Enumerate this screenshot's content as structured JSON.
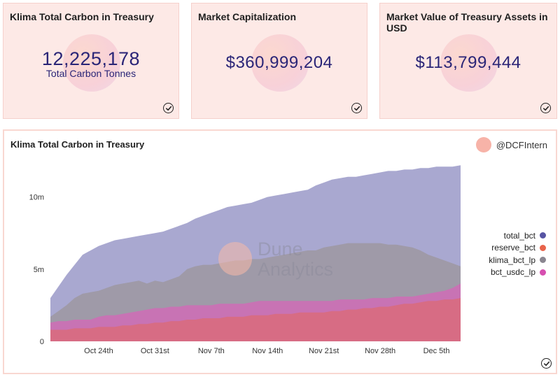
{
  "cards": [
    {
      "title": "Klima Total Carbon in Treasury",
      "value": "12,225,178",
      "subtitle": "Total Carbon Tonnes"
    },
    {
      "title": "Market Capitalization",
      "value": "$360,999,204"
    },
    {
      "title": "Market Value of Treasury Assets in USD",
      "value": "$113,799,444"
    }
  ],
  "chart_card": {
    "title": "Klima Total Carbon in Treasury",
    "attribution": "@DCFIntern",
    "watermark": {
      "line1": "Dune",
      "line2": "Analytics"
    }
  },
  "colors": {
    "card_bg": "#fde9e6",
    "value_text": "#2a2577",
    "total_bct": "#a9a8d0",
    "reserve_bct": "#e8634a",
    "klima_bct_lp": "#9f9aa8",
    "bct_usdc_lp": "#c873b4"
  },
  "chart_data": {
    "type": "area",
    "title": "Klima Total Carbon in Treasury",
    "x_ticks": [
      "Oct 24th",
      "Oct 31st",
      "Nov 7th",
      "Nov 14th",
      "Nov 21st",
      "Nov 28th",
      "Dec 5th"
    ],
    "y_ticks": [
      "0",
      "5m",
      "10m"
    ],
    "ylim": [
      0,
      12500000
    ],
    "x": [
      "Oct 18",
      "Oct 19",
      "Oct 20",
      "Oct 21",
      "Oct 22",
      "Oct 23",
      "Oct 24",
      "Oct 25",
      "Oct 26",
      "Oct 27",
      "Oct 28",
      "Oct 29",
      "Oct 30",
      "Oct 31",
      "Nov 1",
      "Nov 2",
      "Nov 3",
      "Nov 4",
      "Nov 5",
      "Nov 6",
      "Nov 7",
      "Nov 8",
      "Nov 9",
      "Nov 10",
      "Nov 11",
      "Nov 12",
      "Nov 13",
      "Nov 14",
      "Nov 15",
      "Nov 16",
      "Nov 17",
      "Nov 18",
      "Nov 19",
      "Nov 20",
      "Nov 21",
      "Nov 22",
      "Nov 23",
      "Nov 24",
      "Nov 25",
      "Nov 26",
      "Nov 27",
      "Nov 28",
      "Nov 29",
      "Nov 30",
      "Dec 1",
      "Dec 2",
      "Dec 3",
      "Dec 4",
      "Dec 5",
      "Dec 6",
      "Dec 7",
      "Dec 8"
    ],
    "legend": [
      "total_bct",
      "reserve_bct",
      "klima_bct_lp",
      "bct_usdc_lp"
    ],
    "series": [
      {
        "name": "bct_usdc_lp",
        "values": [
          1.3,
          1.4,
          1.4,
          1.5,
          1.5,
          1.5,
          1.7,
          1.8,
          1.8,
          1.9,
          2.0,
          2.1,
          2.2,
          2.3,
          2.3,
          2.4,
          2.4,
          2.5,
          2.5,
          2.5,
          2.5,
          2.6,
          2.6,
          2.6,
          2.6,
          2.7,
          2.8,
          2.8,
          2.8,
          2.8,
          2.8,
          2.8,
          2.8,
          2.8,
          2.8,
          2.8,
          2.9,
          2.9,
          2.9,
          2.9,
          3.0,
          3.0,
          3.0,
          3.1,
          3.1,
          3.1,
          3.2,
          3.3,
          3.4,
          3.5,
          3.7,
          4.0
        ]
      },
      {
        "name": "reserve_bct",
        "values": [
          0.8,
          0.8,
          0.8,
          0.9,
          0.9,
          0.9,
          1.0,
          1.0,
          1.0,
          1.1,
          1.1,
          1.2,
          1.2,
          1.3,
          1.3,
          1.4,
          1.4,
          1.5,
          1.5,
          1.6,
          1.6,
          1.6,
          1.7,
          1.7,
          1.7,
          1.8,
          1.8,
          1.8,
          1.9,
          1.9,
          1.9,
          2.0,
          2.0,
          2.0,
          2.0,
          2.1,
          2.1,
          2.2,
          2.2,
          2.3,
          2.3,
          2.4,
          2.4,
          2.5,
          2.6,
          2.6,
          2.7,
          2.8,
          2.8,
          2.9,
          2.9,
          3.0
        ]
      },
      {
        "name": "klima_bct_lp",
        "values": [
          1.7,
          2.1,
          2.5,
          3.0,
          3.3,
          3.4,
          3.5,
          3.7,
          3.9,
          4.0,
          4.1,
          4.2,
          4.0,
          4.2,
          4.1,
          4.3,
          4.5,
          5.0,
          5.2,
          5.3,
          5.3,
          5.4,
          5.5,
          5.6,
          5.6,
          5.7,
          5.7,
          5.8,
          5.9,
          6.0,
          6.1,
          6.2,
          6.3,
          6.3,
          6.5,
          6.6,
          6.7,
          6.8,
          6.8,
          6.8,
          6.8,
          6.8,
          6.7,
          6.7,
          6.6,
          6.5,
          6.3,
          6.0,
          5.8,
          5.6,
          5.4,
          5.2
        ]
      },
      {
        "name": "total_bct",
        "values": [
          3.0,
          3.8,
          4.6,
          5.3,
          6.0,
          6.3,
          6.6,
          6.8,
          7.0,
          7.1,
          7.2,
          7.3,
          7.4,
          7.5,
          7.6,
          7.8,
          8.0,
          8.2,
          8.5,
          8.7,
          8.9,
          9.1,
          9.3,
          9.4,
          9.5,
          9.6,
          9.8,
          10.0,
          10.1,
          10.2,
          10.3,
          10.4,
          10.5,
          10.8,
          11.0,
          11.2,
          11.3,
          11.4,
          11.4,
          11.5,
          11.6,
          11.7,
          11.8,
          11.8,
          11.9,
          11.9,
          12.0,
          12.0,
          12.1,
          12.1,
          12.1,
          12.2
        ]
      }
    ]
  }
}
